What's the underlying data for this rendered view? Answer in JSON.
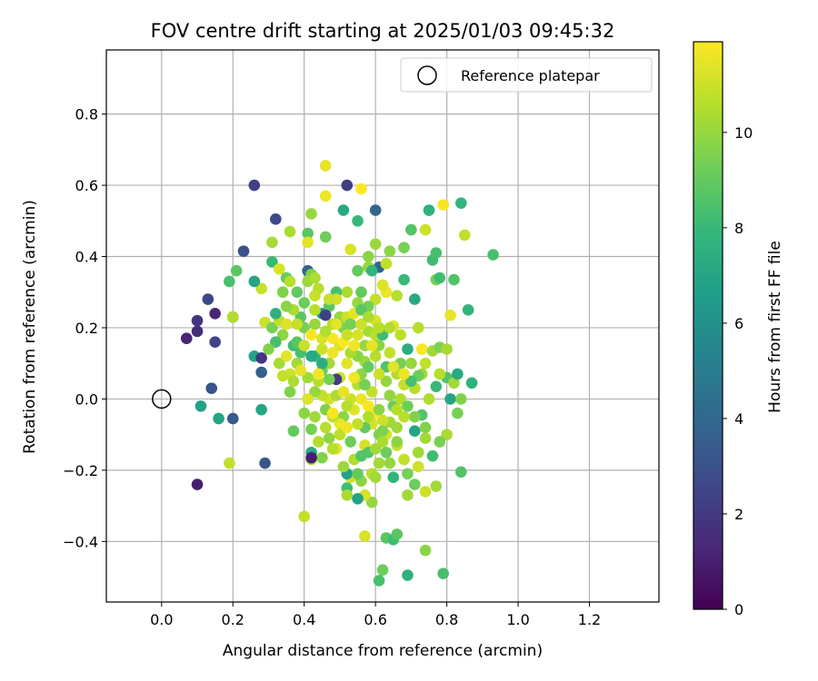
{
  "chart_data": {
    "type": "scatter",
    "title": "FOV centre drift starting at 2025/01/03 09:45:32",
    "xlabel": "Angular distance from reference (arcmin)",
    "ylabel": "Rotation from reference (arcmin)",
    "xlim": [
      -0.155,
      1.395
    ],
    "ylim": [
      -0.57,
      0.98
    ],
    "xticks": [
      0.0,
      0.2,
      0.4,
      0.6,
      0.8,
      1.0,
      1.2
    ],
    "xtick_labels": [
      "0.0",
      "0.2",
      "0.4",
      "0.6",
      "0.8",
      "1.0",
      "1.2"
    ],
    "yticks": [
      -0.4,
      -0.2,
      0.0,
      0.2,
      0.4,
      0.6,
      0.8
    ],
    "ytick_labels": [
      "−0.4",
      "−0.2",
      "0.0",
      "0.2",
      "0.4",
      "0.6",
      "0.8"
    ],
    "grid": true,
    "legend": {
      "position": "top-right",
      "entries": [
        "Reference platepar"
      ]
    },
    "reference_point": {
      "x": 0.0,
      "y": 0.0
    },
    "colormap": "viridis",
    "colorbar": {
      "label": "Hours from first FF file",
      "min": 0,
      "max": 11.9,
      "ticks": [
        0,
        2,
        4,
        6,
        8,
        10
      ],
      "tick_labels": [
        "0",
        "2",
        "4",
        "6",
        "8",
        "10"
      ],
      "stops": [
        "#440154",
        "#482878",
        "#3e4989",
        "#31688e",
        "#26828e",
        "#1f9e89",
        "#35b779",
        "#6ece58",
        "#b5de2b",
        "#fde725"
      ]
    },
    "points": [
      [
        0.07,
        0.17,
        1.2
      ],
      [
        0.1,
        0.19,
        1.5
      ],
      [
        0.1,
        0.22,
        1.8
      ],
      [
        0.13,
        0.28,
        2.6
      ],
      [
        0.15,
        0.24,
        1.3
      ],
      [
        0.15,
        0.16,
        2.4
      ],
      [
        0.14,
        0.03,
        3.1
      ],
      [
        0.11,
        -0.02,
        6.8
      ],
      [
        0.16,
        -0.055,
        7.0
      ],
      [
        0.2,
        -0.055,
        3.4
      ],
      [
        0.1,
        -0.24,
        1.0
      ],
      [
        0.19,
        -0.18,
        10.8
      ],
      [
        0.29,
        -0.18,
        3.2
      ],
      [
        0.28,
        -0.03,
        7.0
      ],
      [
        0.28,
        0.075,
        3.6
      ],
      [
        0.26,
        0.12,
        6.9
      ],
      [
        0.28,
        0.115,
        1.9
      ],
      [
        0.2,
        0.23,
        1.2
      ],
      [
        0.2,
        0.23,
        10.5
      ],
      [
        0.19,
        0.33,
        8.4
      ],
      [
        0.21,
        0.36,
        8.8
      ],
      [
        0.26,
        0.6,
        2.3
      ],
      [
        0.23,
        0.415,
        3.0
      ],
      [
        0.32,
        0.505,
        2.7
      ],
      [
        0.31,
        0.44,
        10.3
      ],
      [
        0.31,
        0.385,
        8.0
      ],
      [
        0.33,
        0.365,
        11.2
      ],
      [
        0.35,
        0.34,
        9.0
      ],
      [
        0.36,
        0.33,
        10.6
      ],
      [
        0.28,
        0.31,
        10.9
      ],
      [
        0.26,
        0.33,
        7.0
      ],
      [
        0.29,
        0.215,
        11.0
      ],
      [
        0.31,
        0.2,
        9.4
      ],
      [
        0.33,
        0.22,
        10.7
      ],
      [
        0.35,
        0.21,
        11.3
      ],
      [
        0.37,
        0.15,
        8.2
      ],
      [
        0.38,
        0.1,
        10.2
      ],
      [
        0.36,
        0.07,
        11.0
      ],
      [
        0.34,
        0.065,
        10.8
      ],
      [
        0.36,
        0.02,
        9.6
      ],
      [
        0.37,
        -0.09,
        9.0
      ],
      [
        0.36,
        0.47,
        10.4
      ],
      [
        0.41,
        0.465,
        8.8
      ],
      [
        0.41,
        0.44,
        11.4
      ],
      [
        0.42,
        0.52,
        10.0
      ],
      [
        0.41,
        0.36,
        3.8
      ],
      [
        0.42,
        0.35,
        9.6
      ],
      [
        0.44,
        0.31,
        10.6
      ],
      [
        0.4,
        0.27,
        9.2
      ],
      [
        0.43,
        0.29,
        10.9
      ],
      [
        0.45,
        0.24,
        6.4
      ],
      [
        0.47,
        0.26,
        8.8
      ],
      [
        0.46,
        0.235,
        2.3
      ],
      [
        0.46,
        0.455,
        9.2
      ],
      [
        0.46,
        0.57,
        11.6
      ],
      [
        0.46,
        0.655,
        11.5
      ],
      [
        0.52,
        0.6,
        2.2
      ],
      [
        0.51,
        0.53,
        7.2
      ],
      [
        0.55,
        0.5,
        8.0
      ],
      [
        0.56,
        0.59,
        11.9
      ],
      [
        0.6,
        0.53,
        4.0
      ],
      [
        0.53,
        0.42,
        11.2
      ],
      [
        0.55,
        0.36,
        9.0
      ],
      [
        0.58,
        0.37,
        10.0
      ],
      [
        0.58,
        0.4,
        9.8
      ],
      [
        0.6,
        0.435,
        10.1
      ],
      [
        0.61,
        0.37,
        3.8
      ],
      [
        0.59,
        0.36,
        7.8
      ],
      [
        0.63,
        0.38,
        10.8
      ],
      [
        0.64,
        0.415,
        9.8
      ],
      [
        0.68,
        0.425,
        9.4
      ],
      [
        0.7,
        0.475,
        8.6
      ],
      [
        0.74,
        0.475,
        11.0
      ],
      [
        0.76,
        0.39,
        8.2
      ],
      [
        0.77,
        0.41,
        8.4
      ],
      [
        0.77,
        0.335,
        9.4
      ],
      [
        0.78,
        0.34,
        8.2
      ],
      [
        0.82,
        0.335,
        8.6
      ],
      [
        0.79,
        0.545,
        11.8
      ],
      [
        0.75,
        0.53,
        7.6
      ],
      [
        0.84,
        0.55,
        7.8
      ],
      [
        0.85,
        0.46,
        10.8
      ],
      [
        0.93,
        0.405,
        8.4
      ],
      [
        0.86,
        0.25,
        7.8
      ],
      [
        0.81,
        0.235,
        11.5
      ],
      [
        0.71,
        0.28,
        7.2
      ],
      [
        0.68,
        0.335,
        8.0
      ],
      [
        0.66,
        0.29,
        10.6
      ],
      [
        0.65,
        0.205,
        11.4
      ],
      [
        0.67,
        0.18,
        10.7
      ],
      [
        0.72,
        0.2,
        10.6
      ],
      [
        0.69,
        0.14,
        7.4
      ],
      [
        0.73,
        0.14,
        11.8
      ],
      [
        0.76,
        0.135,
        10.2
      ],
      [
        0.78,
        0.145,
        9.6
      ],
      [
        0.8,
        0.14,
        10.3
      ],
      [
        0.73,
        0.07,
        10.2
      ],
      [
        0.72,
        0.065,
        9.2
      ],
      [
        0.77,
        0.035,
        8.0
      ],
      [
        0.8,
        0.06,
        8.6
      ],
      [
        0.82,
        0.045,
        10.2
      ],
      [
        0.83,
        0.07,
        7.2
      ],
      [
        0.87,
        0.045,
        7.6
      ],
      [
        0.81,
        0.0,
        7.0
      ],
      [
        0.84,
        0.0,
        9.6
      ],
      [
        0.83,
        -0.04,
        9.4
      ],
      [
        0.8,
        -0.1,
        10.4
      ],
      [
        0.78,
        -0.12,
        9.4
      ],
      [
        0.73,
        -0.045,
        8.6
      ],
      [
        0.71,
        -0.05,
        9.6
      ],
      [
        0.71,
        -0.09,
        7.0
      ],
      [
        0.74,
        -0.08,
        9.6
      ],
      [
        0.68,
        -0.05,
        10.6
      ],
      [
        0.66,
        -0.08,
        10.2
      ],
      [
        0.64,
        -0.065,
        10.2
      ],
      [
        0.63,
        -0.1,
        11.2
      ],
      [
        0.66,
        -0.13,
        10.9
      ],
      [
        0.63,
        -0.15,
        9.2
      ],
      [
        0.61,
        -0.18,
        10.2
      ],
      [
        0.59,
        -0.21,
        10.6
      ],
      [
        0.6,
        -0.22,
        10.2
      ],
      [
        0.65,
        -0.22,
        7.8
      ],
      [
        0.69,
        -0.21,
        9.4
      ],
      [
        0.72,
        -0.19,
        11.1
      ],
      [
        0.71,
        -0.24,
        9.2
      ],
      [
        0.69,
        -0.27,
        10.2
      ],
      [
        0.74,
        -0.26,
        11.0
      ],
      [
        0.77,
        -0.245,
        10.2
      ],
      [
        0.84,
        -0.205,
        8.6
      ],
      [
        0.76,
        -0.16,
        8.2
      ],
      [
        0.59,
        -0.29,
        10.0
      ],
      [
        0.57,
        -0.27,
        11.2
      ],
      [
        0.55,
        -0.28,
        6.8
      ],
      [
        0.52,
        -0.25,
        8.2
      ],
      [
        0.52,
        -0.27,
        10.4
      ],
      [
        0.53,
        -0.22,
        11.0
      ],
      [
        0.52,
        -0.21,
        6.8
      ],
      [
        0.51,
        -0.19,
        10.1
      ],
      [
        0.49,
        -0.14,
        11.4
      ],
      [
        0.48,
        -0.14,
        10.6
      ],
      [
        0.45,
        -0.165,
        9.6
      ],
      [
        0.42,
        -0.15,
        7.2
      ],
      [
        0.42,
        -0.17,
        10.6
      ],
      [
        0.42,
        -0.165,
        1.0
      ],
      [
        0.42,
        -0.085,
        9.4
      ],
      [
        0.43,
        -0.05,
        10.2
      ],
      [
        0.46,
        -0.08,
        10.6
      ],
      [
        0.4,
        -0.33,
        10.8
      ],
      [
        0.57,
        -0.385,
        11.2
      ],
      [
        0.62,
        -0.48,
        9.2
      ],
      [
        0.61,
        -0.51,
        8.4
      ],
      [
        0.63,
        -0.39,
        8.8
      ],
      [
        0.65,
        -0.395,
        8.2
      ],
      [
        0.66,
        -0.38,
        8.8
      ],
      [
        0.69,
        -0.495,
        7.6
      ],
      [
        0.74,
        -0.425,
        9.8
      ],
      [
        0.79,
        -0.49,
        8.4
      ],
      [
        0.56,
        -0.23,
        9.8
      ],
      [
        0.55,
        -0.21,
        9.0
      ],
      [
        0.54,
        -0.17,
        10.5
      ],
      [
        0.57,
        -0.13,
        11.2
      ],
      [
        0.58,
        -0.15,
        8.6
      ],
      [
        0.6,
        -0.14,
        10.2
      ],
      [
        0.61,
        -0.1,
        9.6
      ],
      [
        0.62,
        -0.06,
        11.0
      ],
      [
        0.65,
        -0.02,
        9.2
      ],
      [
        0.67,
        0.0,
        10.5
      ],
      [
        0.68,
        0.04,
        10.8
      ],
      [
        0.66,
        0.07,
        10.5
      ],
      [
        0.67,
        0.1,
        9.4
      ],
      [
        0.7,
        0.1,
        10.0
      ],
      [
        0.71,
        0.03,
        10.6
      ],
      [
        0.63,
        0.09,
        8.6
      ],
      [
        0.6,
        0.12,
        10.6
      ],
      [
        0.57,
        0.105,
        10.1
      ],
      [
        0.55,
        0.12,
        9.8
      ],
      [
        0.53,
        0.13,
        10.4
      ],
      [
        0.52,
        0.1,
        11.4
      ],
      [
        0.5,
        0.06,
        11.0
      ],
      [
        0.49,
        0.055,
        2.1
      ],
      [
        0.47,
        0.055,
        9.4
      ],
      [
        0.47,
        0.1,
        10.2
      ],
      [
        0.45,
        0.08,
        9.0
      ],
      [
        0.45,
        0.1,
        7.4
      ],
      [
        0.44,
        0.05,
        10.6
      ],
      [
        0.43,
        0.12,
        7.8
      ],
      [
        0.42,
        0.12,
        7.2
      ],
      [
        0.39,
        0.13,
        8.4
      ],
      [
        0.38,
        0.16,
        8.8
      ],
      [
        0.4,
        0.2,
        9.4
      ],
      [
        0.43,
        0.21,
        10.0
      ],
      [
        0.45,
        0.17,
        11.2
      ],
      [
        0.48,
        0.21,
        10.6
      ],
      [
        0.5,
        0.23,
        10.0
      ],
      [
        0.51,
        0.2,
        9.6
      ],
      [
        0.52,
        0.23,
        11.0
      ],
      [
        0.53,
        0.21,
        9.4
      ],
      [
        0.54,
        0.24,
        11.5
      ],
      [
        0.55,
        0.27,
        10.0
      ],
      [
        0.56,
        0.3,
        9.0
      ],
      [
        0.52,
        0.3,
        10.4
      ],
      [
        0.49,
        0.3,
        8.4
      ],
      [
        0.49,
        0.28,
        11.1
      ],
      [
        0.47,
        0.28,
        10.9
      ],
      [
        0.43,
        0.25,
        10.6
      ],
      [
        0.55,
        0.18,
        11.2
      ],
      [
        0.57,
        0.15,
        10.0
      ],
      [
        0.58,
        0.19,
        10.3
      ],
      [
        0.6,
        0.18,
        10.6
      ],
      [
        0.61,
        0.15,
        9.8
      ],
      [
        0.62,
        0.18,
        8.2
      ],
      [
        0.64,
        0.2,
        10.5
      ],
      [
        0.64,
        0.13,
        10.8
      ],
      [
        0.63,
        0.3,
        11.6
      ],
      [
        0.62,
        0.32,
        11.3
      ],
      [
        0.6,
        0.28,
        10.8
      ],
      [
        0.58,
        0.26,
        9.4
      ],
      [
        0.56,
        0.25,
        8.8
      ],
      [
        0.6,
        0.22,
        11.2
      ],
      [
        0.58,
        0.09,
        9.0
      ],
      [
        0.56,
        0.07,
        9.8
      ],
      [
        0.55,
        0.04,
        10.6
      ],
      [
        0.56,
        0.0,
        11.6
      ],
      [
        0.58,
        -0.02,
        11.8
      ],
      [
        0.59,
        0.02,
        10.8
      ],
      [
        0.6,
        -0.04,
        11.8
      ],
      [
        0.61,
        -0.03,
        9.8
      ],
      [
        0.62,
        -0.09,
        9.6
      ],
      [
        0.59,
        -0.07,
        11.2
      ],
      [
        0.57,
        -0.08,
        9.0
      ],
      [
        0.55,
        -0.07,
        10.8
      ],
      [
        0.54,
        -0.03,
        11.4
      ],
      [
        0.53,
        0.0,
        11.0
      ],
      [
        0.52,
        -0.02,
        10.6
      ],
      [
        0.51,
        -0.05,
        9.8
      ],
      [
        0.5,
        -0.07,
        11.6
      ],
      [
        0.48,
        -0.05,
        10.8
      ],
      [
        0.46,
        -0.03,
        9.6
      ],
      [
        0.47,
        0.0,
        11.1
      ],
      [
        0.49,
        0.01,
        10.4
      ],
      [
        0.51,
        0.02,
        11.5
      ],
      [
        0.45,
        0.01,
        10.8
      ],
      [
        0.43,
        0.02,
        10.0
      ],
      [
        0.41,
        0.0,
        11.3
      ],
      [
        0.4,
        -0.04,
        9.8
      ],
      [
        0.44,
        -0.12,
        10.5
      ],
      [
        0.47,
        -0.11,
        9.9
      ],
      [
        0.5,
        -0.1,
        10.7
      ],
      [
        0.53,
        -0.12,
        9.2
      ],
      [
        0.56,
        -0.16,
        8.6
      ],
      [
        0.48,
        -0.04,
        11.8
      ],
      [
        0.52,
        -0.08,
        11.6
      ],
      [
        0.54,
        0.15,
        11.6
      ],
      [
        0.5,
        0.15,
        11.3
      ],
      [
        0.48,
        0.13,
        11.6
      ],
      [
        0.45,
        0.14,
        11.0
      ],
      [
        0.48,
        0.17,
        11.8
      ],
      [
        0.51,
        0.16,
        11.9
      ],
      [
        0.46,
        0.19,
        10.5
      ],
      [
        0.49,
        0.21,
        11.4
      ],
      [
        0.52,
        0.18,
        10.9
      ],
      [
        0.56,
        0.21,
        11.0
      ],
      [
        0.58,
        0.23,
        10.4
      ],
      [
        0.54,
        0.06,
        11.7
      ],
      [
        0.57,
        0.04,
        9.4
      ],
      [
        0.44,
        0.07,
        11.7
      ],
      [
        0.41,
        0.06,
        10.2
      ],
      [
        0.39,
        0.08,
        11.5
      ],
      [
        0.4,
        0.15,
        10.9
      ],
      [
        0.42,
        0.18,
        11.8
      ],
      [
        0.39,
        0.23,
        8.8
      ],
      [
        0.37,
        0.25,
        10.4
      ],
      [
        0.38,
        0.21,
        10.9
      ],
      [
        0.34,
        0.18,
        9.8
      ],
      [
        0.32,
        0.16,
        8.4
      ],
      [
        0.3,
        0.14,
        9.6
      ],
      [
        0.33,
        0.1,
        10.3
      ],
      [
        0.35,
        0.12,
        11.4
      ],
      [
        0.37,
        0.05,
        10.4
      ],
      [
        0.32,
        0.24,
        7.6
      ],
      [
        0.35,
        0.26,
        9.8
      ],
      [
        0.38,
        0.3,
        9.0
      ],
      [
        0.41,
        0.33,
        10.1
      ],
      [
        0.43,
        0.34,
        10.4
      ],
      [
        0.34,
        0.3,
        9.6
      ],
      [
        0.64,
        0.01,
        9.9
      ],
      [
        0.66,
        -0.03,
        10.6
      ],
      [
        0.69,
        -0.02,
        9.2
      ],
      [
        0.7,
        0.05,
        8.4
      ],
      [
        0.74,
        0.1,
        10.8
      ],
      [
        0.75,
        0.0,
        10.5
      ],
      [
        0.78,
        0.07,
        10.6
      ],
      [
        0.74,
        -0.11,
        10.2
      ],
      [
        0.68,
        -0.17,
        10.8
      ],
      [
        0.72,
        -0.15,
        10.2
      ],
      [
        0.64,
        -0.18,
        10.0
      ],
      [
        0.62,
        -0.12,
        10.4
      ],
      [
        0.66,
        -0.12,
        9.8
      ],
      [
        0.58,
        -0.05,
        10.5
      ],
      [
        0.63,
        0.05,
        10.0
      ],
      [
        0.65,
        0.09,
        11.4
      ],
      [
        0.68,
        0.07,
        11.6
      ],
      [
        0.61,
        0.07,
        11.0
      ],
      [
        0.59,
        0.15,
        11.5
      ],
      [
        0.61,
        0.2,
        10.6
      ]
    ]
  }
}
